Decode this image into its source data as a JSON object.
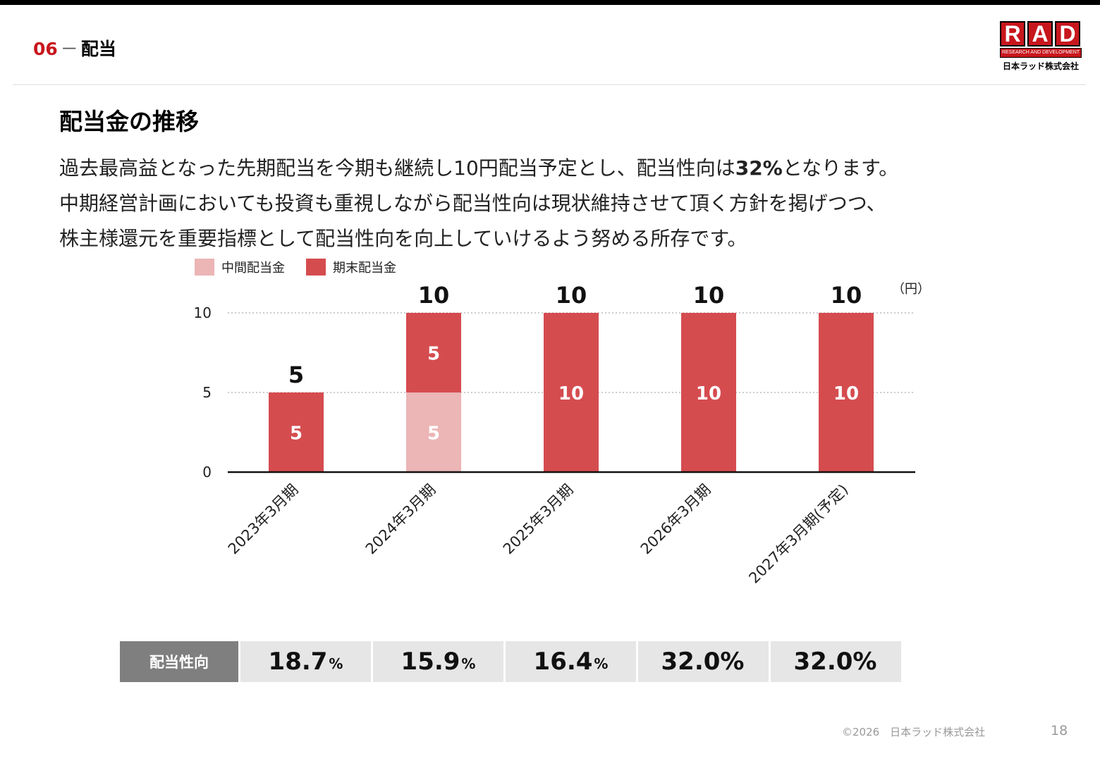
{
  "header": {
    "section_number": "06",
    "section_dash": "－",
    "section_title": "配当"
  },
  "logo": {
    "letters": [
      "R",
      "A",
      "D"
    ],
    "sub": "RESEARCH AND DEVELOPMENT",
    "company": "日本ラッド株式会社"
  },
  "page_title": "配当金の推移",
  "body": {
    "line1_pre": "過去最高益となった先期配当を今期も継続し10円配当予定とし、配当性向は",
    "line1_bold": "32%",
    "line1_post": "となります。",
    "line2": "中期経営計画においても投資も重視しながら配当性向は現状維持させて頂く方針を掲げつつ、",
    "line3": "株主様還元を重要指標として配当性向を向上していけるよう努める所存です。"
  },
  "colors": {
    "interim": "#ecb5b6",
    "year_end": "#d54c4f",
    "accent": "#c8161d"
  },
  "chart_data": {
    "type": "bar",
    "stacked": true,
    "unit_label": "（円）",
    "categories": [
      "2023年3月期",
      "2024年3月期",
      "2025年3月期",
      "2026年3月期",
      "2027年3月期(予定)"
    ],
    "series": [
      {
        "name": "中間配当金",
        "values": [
          0,
          5,
          0,
          0,
          0
        ]
      },
      {
        "name": "期末配当金",
        "values": [
          5,
          5,
          10,
          10,
          10
        ]
      }
    ],
    "totals": [
      5,
      10,
      10,
      10,
      10
    ],
    "ylim": [
      0,
      10
    ],
    "yticks": [
      0,
      5,
      10
    ],
    "grid": true,
    "legend": "top-left"
  },
  "payout_ratio": {
    "label": "配当性向",
    "values": [
      {
        "num": "18.7",
        "unit": "%"
      },
      {
        "num": "15.9",
        "unit": "%"
      },
      {
        "num": "16.4",
        "unit": "%"
      },
      {
        "num": "32.0%",
        "unit": ""
      },
      {
        "num": "32.0%",
        "unit": ""
      }
    ]
  },
  "footer": {
    "copyright": "©2026　日本ラッド株式会社",
    "page": "18"
  }
}
